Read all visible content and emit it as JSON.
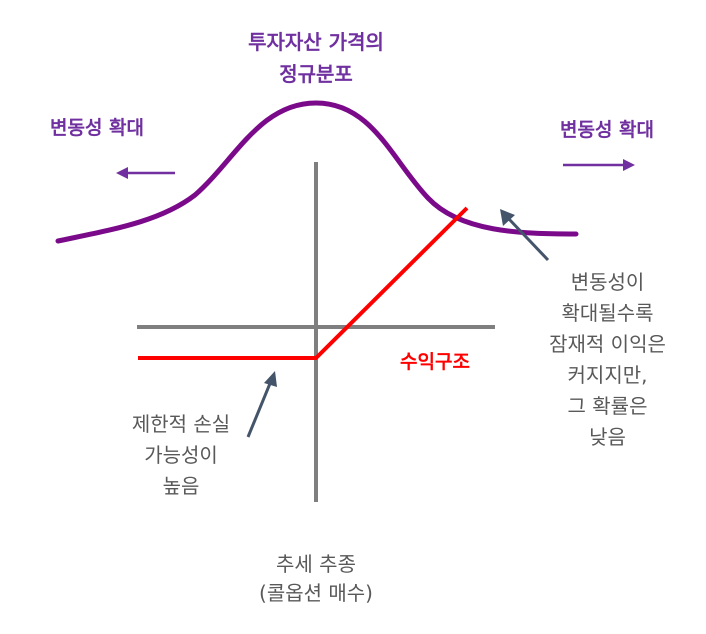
{
  "title": {
    "line1": "투자자산 가격의",
    "line2": "정규분포"
  },
  "volatility_left": "변동성 확대",
  "volatility_right": "변동성 확대",
  "payoff_label": "수익구조",
  "note_left": {
    "line1": "제한적 손실",
    "line2": "가능성이",
    "line3": "높음"
  },
  "note_right": {
    "line1": "변동성이",
    "line2": "확대될수록",
    "line3": "잠재적 이익은",
    "line4": "커지지만,",
    "line5": "그 확률은",
    "line6": "낮음"
  },
  "caption": {
    "line1": "추세 추종",
    "line2": "(콜옵션 매수)"
  },
  "colors": {
    "curve": "#7a0a8a",
    "payoff": "#ff0000",
    "axis": "#7f7f7f",
    "arrow": "#44546a",
    "text_purple": "#7030a0",
    "text_gray": "#595959"
  }
}
